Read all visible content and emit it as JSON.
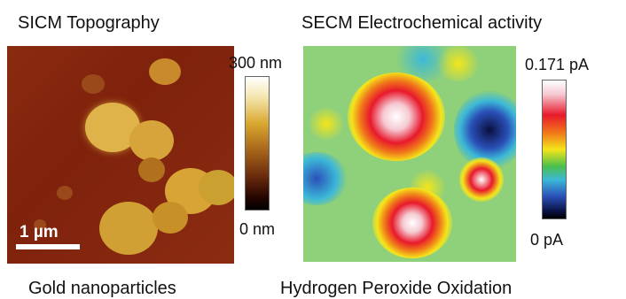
{
  "sicm": {
    "title": "SICM Topography",
    "caption": "Gold nanoparticles",
    "colorbar": {
      "max_label": "300 nm",
      "min_label": "0 nm"
    },
    "scale_bar_label": "1 µm",
    "palette": {
      "background": "#82240e",
      "particle": "#d9a62e",
      "highlight": "#f2cf6a"
    }
  },
  "secm": {
    "title": "SECM Electrochemical activity",
    "caption": "Hydrogen Peroxide Oxidation",
    "colorbar": {
      "max_label": "0.171 pA",
      "min_label": "0 pA"
    },
    "palette": {
      "high": "#ffffff",
      "mid_high": "#e8192c",
      "mid": "#f4e51b",
      "base": "#8fd07a",
      "low": "#2a50b8",
      "lowest": "#0a1040"
    }
  }
}
